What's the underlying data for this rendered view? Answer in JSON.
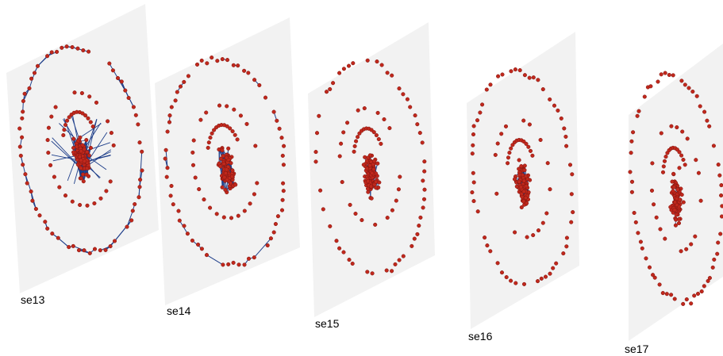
{
  "colors": {
    "plane_fill": "#f2f2f2",
    "node_fill": "#c0281c",
    "node_stroke": "#7e1410",
    "edge": "#1f3f8a"
  },
  "layers": [
    {
      "label": "se13"
    },
    {
      "label": "se14"
    },
    {
      "label": "se15"
    },
    {
      "label": "se16"
    },
    {
      "label": "se17"
    }
  ]
}
